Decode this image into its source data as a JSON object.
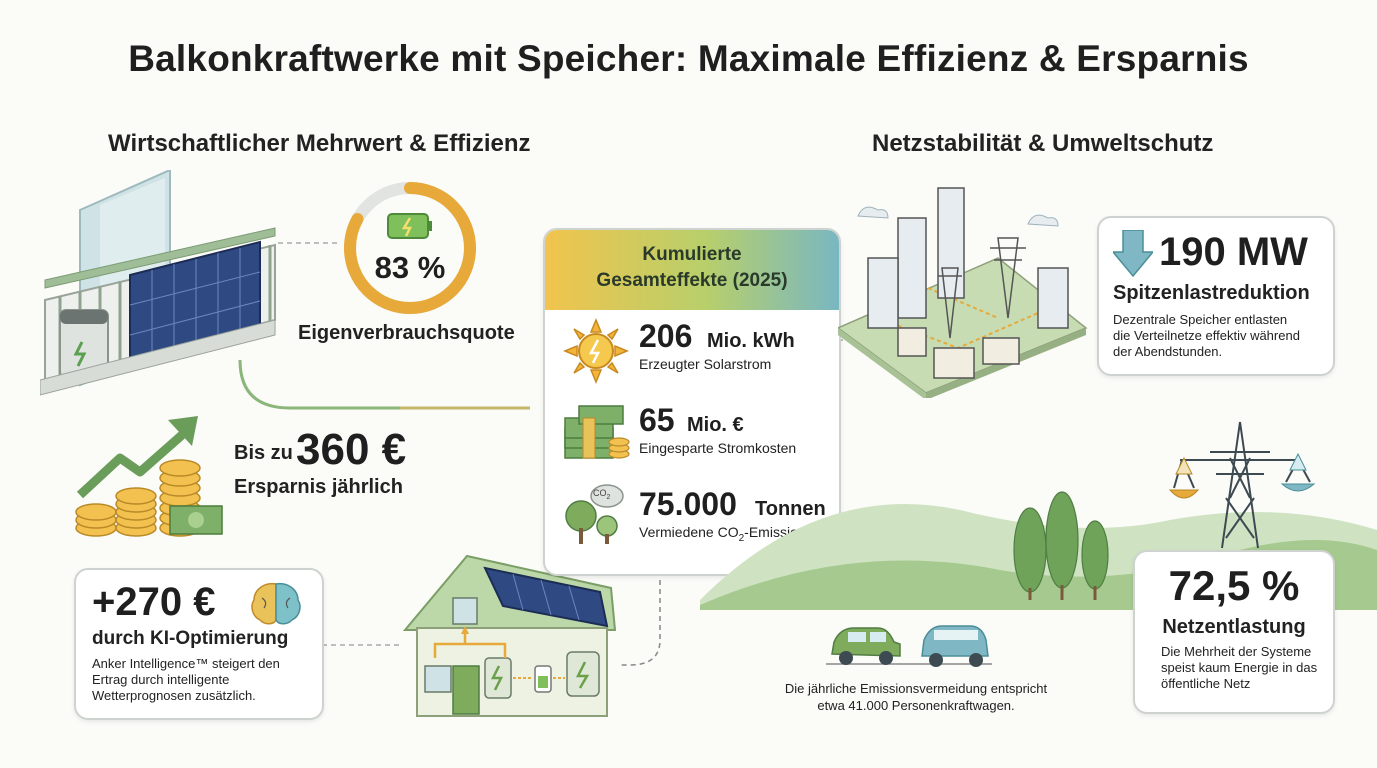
{
  "title": "Balkonkraftwerke mit Speicher: Maximale Effizienz & Ersparnis",
  "left_section": {
    "heading": "Wirtschaftlicher Mehrwert & Effizienz",
    "self_consumption": {
      "value": "83 %",
      "label": "Eigenverbrauchsquote",
      "fraction": 0.83
    },
    "savings": {
      "prefix": "Bis zu",
      "value": "360 €",
      "label": "Ersparnis jährlich"
    },
    "ai": {
      "value": "+270 €",
      "label": "durch KI-Optimierung",
      "desc": [
        "Anker Intelligence™ steigert den",
        "Ertrag durch intelligente",
        "Wetterprognosen zusätzlich."
      ]
    }
  },
  "center_card": {
    "heading_line1": "Kumulierte",
    "heading_line2": "Gesamteffekte (2025)",
    "items": [
      {
        "value": "206",
        "unit": "Mio. kWh",
        "desc": "Erzeugter Solarstrom",
        "icon": "sun-icon"
      },
      {
        "value": "65",
        "unit": "Mio. €",
        "desc": "Eingesparte Stromkosten",
        "icon": "money-icon"
      },
      {
        "value": "75.000",
        "unit": "Tonnen",
        "desc_prefix": "Vermiedene CO",
        "desc_sub": "2",
        "desc_suffix": "-Emissionen",
        "icon": "trees-co2-icon"
      }
    ],
    "co2_label": "CO",
    "co2_sub": "2"
  },
  "right_section": {
    "heading": "Netzstabilität & Umweltschutz",
    "peak": {
      "value": "190 MW",
      "label": "Spitzenlastreduktion",
      "desc": [
        "Dezentrale Speicher entlasten",
        "die Verteilnetze effektiv während",
        "der Abendstunden."
      ]
    },
    "grid": {
      "value": "72,5 %",
      "label": "Netzentlastung",
      "desc": [
        "Die Mehrheit der Systeme",
        "speist kaum Energie in das",
        "öffentliche Netz"
      ]
    },
    "cars": {
      "desc": [
        "Die jährliche Emissionsvermeidung entspricht",
        "etwa 41.000 Personenkraftwagen."
      ]
    }
  },
  "colors": {
    "accent_green": "#7fab5c",
    "accent_orange": "#e7a93a",
    "accent_teal": "#5fa6b4",
    "dark_green": "#4f7d43"
  }
}
